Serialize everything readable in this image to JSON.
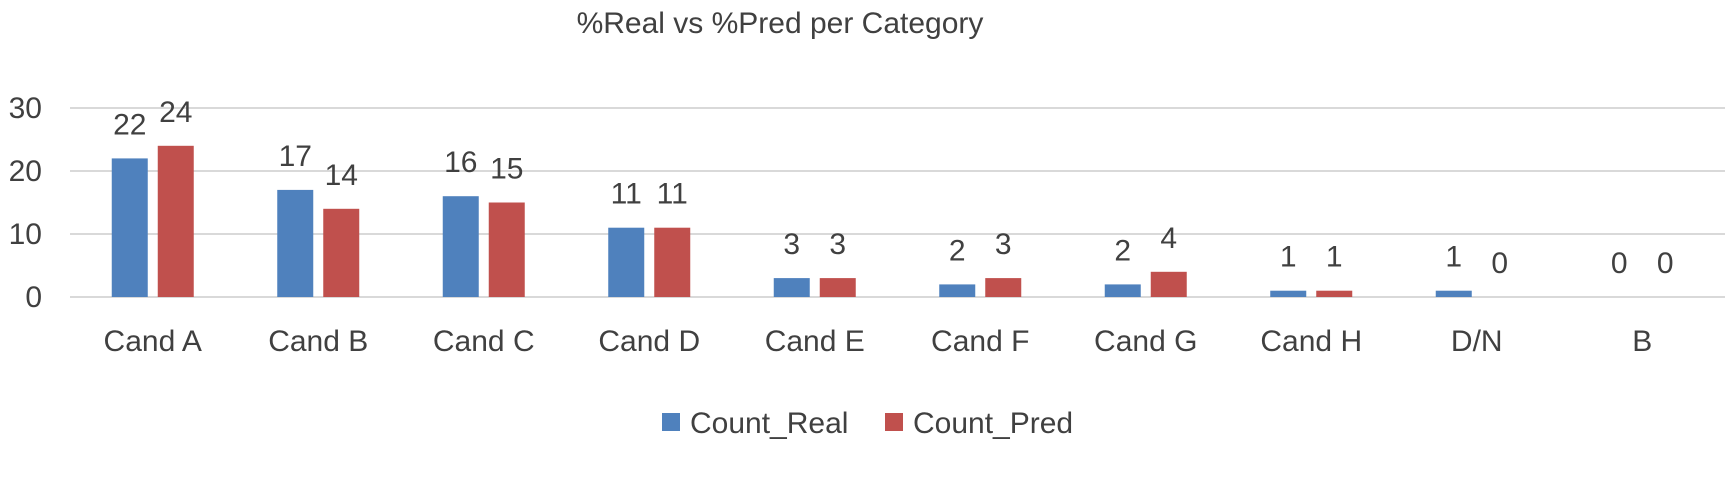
{
  "chart_data": {
    "type": "bar",
    "title": "%Real vs %Pred per Category",
    "xlabel": "",
    "ylabel": "",
    "categories": [
      "Cand A",
      "Cand B",
      "Cand C",
      "Cand D",
      "Cand E",
      "Cand F",
      "Cand G",
      "Cand H",
      "D/N",
      "B"
    ],
    "series": [
      {
        "name": "Count_Real",
        "color": "#4f81bd",
        "values": [
          22,
          17,
          16,
          11,
          3,
          2,
          2,
          1,
          1,
          0
        ]
      },
      {
        "name": "Count_Pred",
        "color": "#c0504d",
        "values": [
          24,
          14,
          15,
          11,
          3,
          3,
          4,
          1,
          0,
          0
        ]
      }
    ],
    "ylim": [
      0,
      30
    ],
    "yticks": [
      0,
      10,
      20,
      30
    ],
    "grid": true,
    "legend_position": "bottom",
    "data_labels": true
  }
}
